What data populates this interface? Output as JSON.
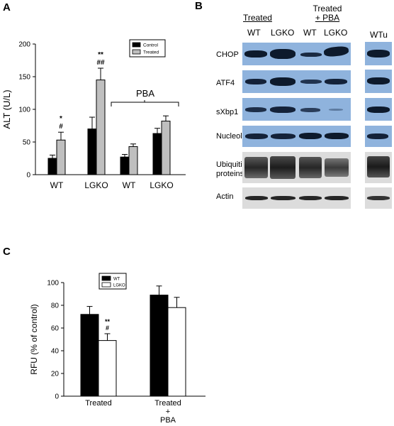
{
  "panels": {
    "a": "A",
    "b": "B",
    "c": "C"
  },
  "chart_data": [
    {
      "type": "bar",
      "panel": "A",
      "ylabel": "ALT (U/L)",
      "ylim": [
        0,
        200
      ],
      "yticks": [
        0,
        50,
        100,
        150,
        200
      ],
      "groups": [
        "WT",
        "LGKO",
        "WT",
        "LGKO"
      ],
      "group_label": "PBA",
      "series": [
        {
          "name": "Control",
          "color": "#000000",
          "values": [
            25,
            70,
            27,
            63
          ],
          "errors": [
            5,
            18,
            4,
            8
          ]
        },
        {
          "name": "Treated",
          "color": "#bfbfbf",
          "values": [
            53,
            145,
            43,
            82
          ],
          "errors": [
            12,
            18,
            4,
            8
          ]
        }
      ],
      "annotations": [
        {
          "group": 0,
          "series": 1,
          "lines": [
            "*",
            "#"
          ]
        },
        {
          "group": 1,
          "series": 1,
          "lines": [
            "**",
            "##"
          ]
        }
      ],
      "legend_position": "top-right"
    },
    {
      "type": "bar",
      "panel": "C",
      "ylabel": "RFU (% of control)",
      "ylim": [
        0,
        100
      ],
      "yticks": [
        0,
        20,
        40,
        60,
        80,
        100
      ],
      "groups": [
        [
          "Treated"
        ],
        [
          "Treated",
          "+",
          "PBA"
        ]
      ],
      "series": [
        {
          "name": "WT",
          "color": "#000000",
          "values": [
            72,
            89
          ],
          "errors": [
            7,
            8
          ]
        },
        {
          "name": "LGKO",
          "color": "#ffffff",
          "values": [
            49,
            78
          ],
          "errors": [
            6,
            9
          ]
        }
      ],
      "annotations": [
        {
          "group": 0,
          "series": 1,
          "lines": [
            "**",
            "#"
          ]
        }
      ],
      "legend_position": "top-left"
    }
  ],
  "western_blot": {
    "header_treated": "Treated",
    "header_treated_pba": [
      "Treated",
      "+ PBA"
    ],
    "lanes": [
      "WT",
      "LGKO",
      "WT",
      "LGKO"
    ],
    "extra_lane": "WTu",
    "rows": [
      "CHOP",
      "ATF4",
      "sXbp1",
      "Nucleolin",
      "Ubiquitinated proteins",
      "Actin"
    ],
    "colors": {
      "blue_bg": "#8fb3dd",
      "band_dark": "#0d1a2c",
      "gray_bg": "#dcdcdc",
      "gray_band": "#262626"
    }
  }
}
